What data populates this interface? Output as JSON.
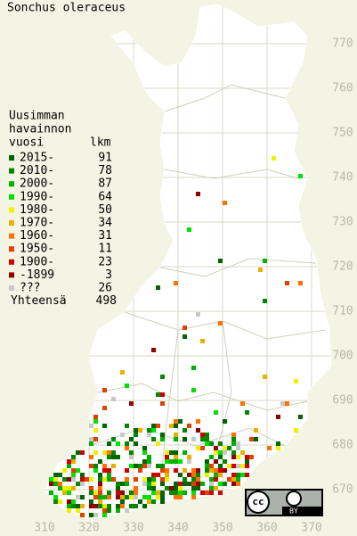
{
  "title": "Sonchus oleraceus",
  "legend": {
    "heading": [
      "Uusimman",
      "havainnon",
      "vuosi"
    ],
    "count_heading": "lkm",
    "items": [
      {
        "label": "2015-",
        "count": 91,
        "color": "#006400"
      },
      {
        "label": "2010-",
        "count": 78,
        "color": "#008800"
      },
      {
        "label": "2000-",
        "count": 87,
        "color": "#00b000"
      },
      {
        "label": "1990-",
        "count": 64,
        "color": "#00e000"
      },
      {
        "label": "1980-",
        "count": 50,
        "color": "#f0f000"
      },
      {
        "label": "1970-",
        "count": 34,
        "color": "#e8b000"
      },
      {
        "label": "1960-",
        "count": 31,
        "color": "#ff7000"
      },
      {
        "label": "1950-",
        "count": 11,
        "color": "#e04000"
      },
      {
        "label": "1900-",
        "count": 23,
        "color": "#d00000"
      },
      {
        "label": "-1899",
        "count": 3,
        "color": "#900000"
      },
      {
        "label": "???",
        "count": 26,
        "color": "#c8c8c8"
      }
    ],
    "total_label": "Yhteensä",
    "total": 498
  },
  "y_axis": {
    "ticks": [
      770,
      760,
      750,
      740,
      730,
      720,
      710,
      700,
      690,
      680,
      670
    ]
  },
  "x_axis": {
    "ticks": [
      310,
      320,
      330,
      340,
      350,
      360,
      370
    ]
  },
  "badge": {
    "cc": "cc",
    "by": "BY"
  }
}
